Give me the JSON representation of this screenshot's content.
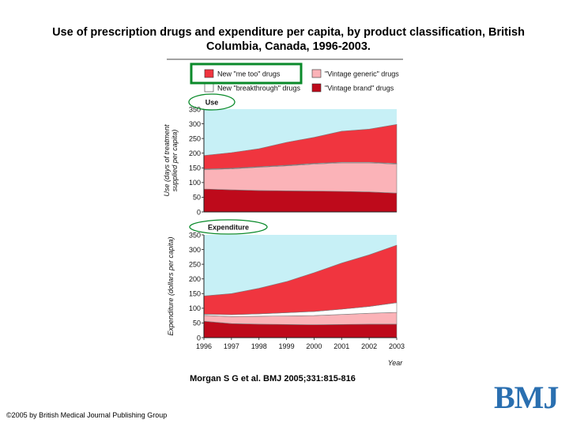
{
  "slide": {
    "title": "Use of prescription drugs and expenditure per capita, by product classification, British Columbia, Canada, 1996-2003.",
    "citation": "Morgan S G et al. BMJ 2005;331:815-816",
    "copyright": "©2005 by British Medical Journal Publishing Group",
    "logo_text": "BMJ"
  },
  "colors": {
    "plot_bg": "#c7f0f6",
    "me_too": "#f0353f",
    "breakthrough": "#ffffff",
    "vintage_generic": "#fbb3b8",
    "vintage_brand": "#be0a1b",
    "highlight": "#0a8a2a",
    "logo": "#2a6fb0"
  },
  "legend": {
    "items": [
      {
        "key": "me_too",
        "label": "New \"me too\" drugs"
      },
      {
        "key": "vintage_generic",
        "label": "\"Vintage generic\" drugs"
      },
      {
        "key": "breakthrough",
        "label": "New \"breakthrough\" drugs"
      },
      {
        "key": "vintage_brand",
        "label": "\"Vintage brand\" drugs"
      }
    ]
  },
  "chart_data": [
    {
      "type": "area",
      "stacked": true,
      "title": "Use",
      "ylabel": "Use (days of treatment supplied per capita)",
      "xlabel": "",
      "x": [
        1996,
        1997,
        1998,
        1999,
        2000,
        2001,
        2002,
        2003
      ],
      "ylim": [
        0,
        350
      ],
      "yticks": [
        0,
        50,
        100,
        150,
        200,
        250,
        300,
        350
      ],
      "series": [
        {
          "name": "\"Vintage brand\" drugs",
          "key": "vintage_brand",
          "values": [
            78,
            75,
            73,
            72,
            71,
            70,
            68,
            64
          ]
        },
        {
          "name": "\"Vintage generic\" drugs",
          "key": "vintage_generic",
          "values": [
            66,
            72,
            79,
            85,
            92,
            97,
            99,
            99
          ]
        },
        {
          "name": "New \"breakthrough\" drugs",
          "key": "breakthrough",
          "values": [
            2,
            2,
            2,
            2,
            2,
            2,
            2,
            2
          ]
        },
        {
          "name": "New \"me too\" drugs",
          "key": "me_too",
          "values": [
            46,
            53,
            61,
            78,
            89,
            106,
            113,
            133
          ]
        }
      ]
    },
    {
      "type": "area",
      "stacked": true,
      "title": "Expenditure",
      "ylabel": "Expenditure (dollars per capita)",
      "xlabel": "Year",
      "x": [
        1996,
        1997,
        1998,
        1999,
        2000,
        2001,
        2002,
        2003
      ],
      "ylim": [
        0,
        350
      ],
      "yticks": [
        0,
        50,
        100,
        150,
        200,
        250,
        300,
        350
      ],
      "series": [
        {
          "name": "\"Vintage brand\" drugs",
          "key": "vintage_brand",
          "values": [
            56,
            48,
            46,
            45,
            44,
            45,
            46,
            46
          ]
        },
        {
          "name": "\"Vintage generic\" drugs",
          "key": "vintage_generic",
          "values": [
            20,
            24,
            27,
            29,
            31,
            34,
            37,
            40
          ]
        },
        {
          "name": "New \"breakthrough\" drugs",
          "key": "breakthrough",
          "values": [
            4,
            6,
            8,
            11,
            14,
            18,
            23,
            33
          ]
        },
        {
          "name": "New \"me too\" drugs",
          "key": "me_too",
          "values": [
            62,
            72,
            87,
            106,
            132,
            157,
            176,
            196
          ]
        }
      ]
    }
  ]
}
